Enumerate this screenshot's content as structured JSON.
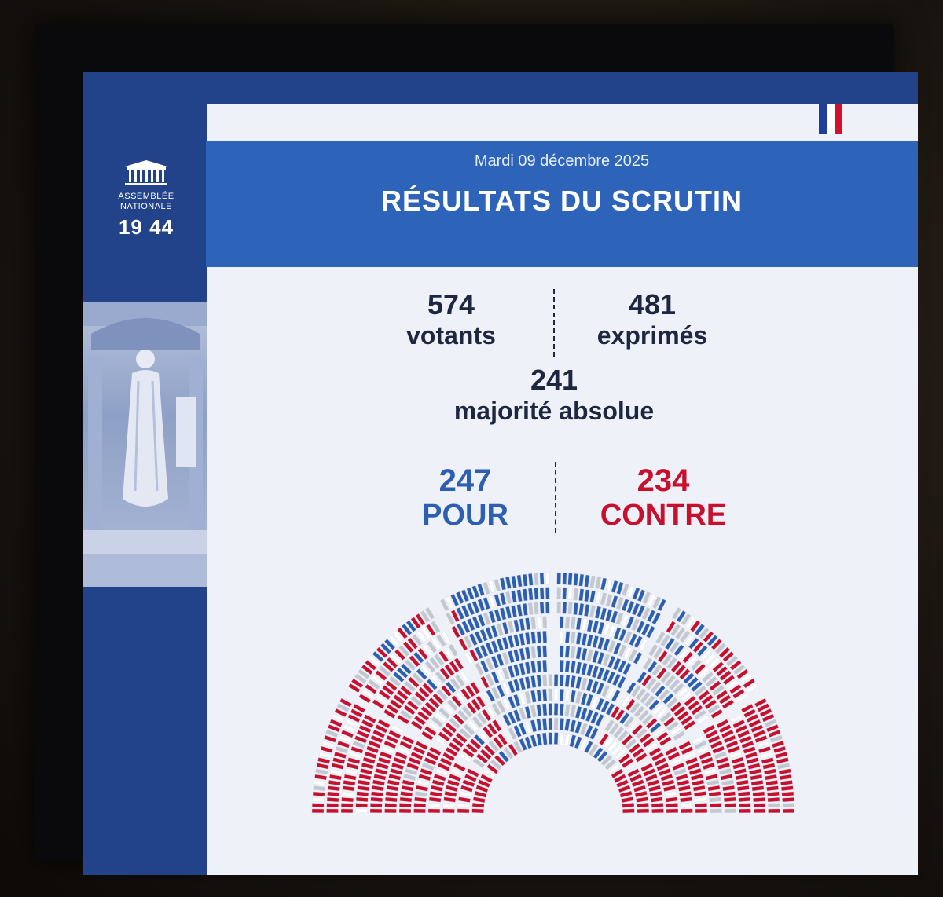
{
  "logo": {
    "line1": "ASSEMBLÉE",
    "line2": "NATIONALE",
    "number": "19 44"
  },
  "header": {
    "date": "Mardi 09 décembre 2025",
    "title": "RÉSULTATS DU SCRUTIN"
  },
  "stats": {
    "votants": {
      "value": "574",
      "label": "votants"
    },
    "exprimes": {
      "value": "481",
      "label": "exprimés"
    },
    "majorite": {
      "value": "241",
      "label": "majorité absolue"
    },
    "pour": {
      "value": "247",
      "label": "POUR"
    },
    "contre": {
      "value": "234",
      "label": "CONTRE"
    }
  },
  "colors": {
    "blue_band": "#22428a",
    "header_blue": "#2d63b8",
    "pour": "#2d5fb0",
    "contre": "#c8102e",
    "abstention": "#c3c7cf",
    "absent": "#ffffff"
  },
  "hemicycle": {
    "seats_pour": 247,
    "seats_contre": 234,
    "rows": 12
  }
}
